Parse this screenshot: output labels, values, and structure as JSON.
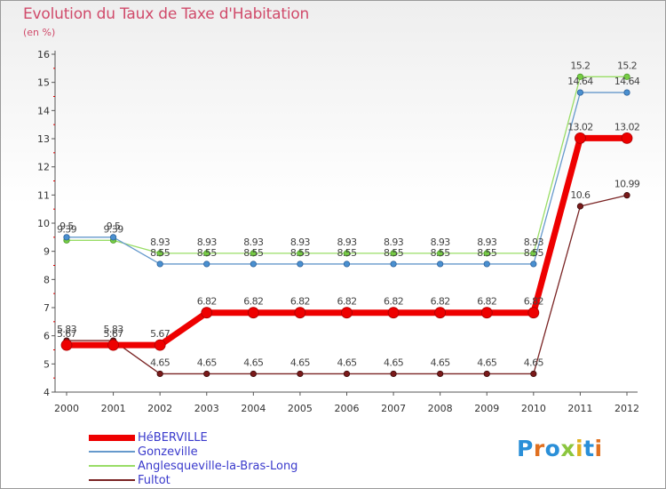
{
  "chart_data": {
    "type": "line",
    "title": "Evolution du Taux de Taxe d'Habitation",
    "ylabel": "(en %)",
    "xlabel": "",
    "ylim": [
      4,
      16
    ],
    "yticks": [
      "4",
      "5",
      "6",
      "7",
      "8",
      "9",
      "10",
      "11",
      "12",
      "13",
      "14",
      "15",
      "16"
    ],
    "categories": [
      "2000",
      "2001",
      "2002",
      "2003",
      "2004",
      "2005",
      "2006",
      "2007",
      "2008",
      "2009",
      "2010",
      "2011",
      "2012"
    ],
    "series": [
      {
        "name": "HéBERVILLE",
        "color": "#ee0000",
        "values": [
          5.67,
          5.67,
          5.67,
          6.82,
          6.82,
          6.82,
          6.82,
          6.82,
          6.82,
          6.82,
          6.82,
          13.02,
          13.02
        ],
        "labels": [
          "5.67",
          "5.67",
          "5.67",
          "6.82",
          "6.82",
          "6.82",
          "6.82",
          "6.82",
          "6.82",
          "6.82",
          "6.82",
          "13.02",
          "13.02"
        ]
      },
      {
        "name": "Gonzeville",
        "color": "#6699cc",
        "values": [
          9.5,
          9.5,
          8.55,
          8.55,
          8.55,
          8.55,
          8.55,
          8.55,
          8.55,
          8.55,
          8.55,
          14.64,
          14.64
        ],
        "labels": [
          "9.5",
          "9.5",
          "8.55",
          "8.55",
          "8.55",
          "8.55",
          "8.55",
          "8.55",
          "8.55",
          "8.55",
          "8.55",
          "14.64",
          "14.64"
        ]
      },
      {
        "name": "Anglesqueville-la-Bras-Long",
        "color": "#99dd66",
        "values": [
          9.39,
          9.39,
          8.93,
          8.93,
          8.93,
          8.93,
          8.93,
          8.93,
          8.93,
          8.93,
          8.93,
          15.2,
          15.2
        ],
        "labels": [
          "9.39",
          "9.39",
          "8.93",
          "8.93",
          "8.93",
          "8.93",
          "8.93",
          "8.93",
          "8.93",
          "8.93",
          "8.93",
          "15.2",
          "15.2"
        ]
      },
      {
        "name": "Fultot",
        "color": "#7a2424",
        "values": [
          5.83,
          5.83,
          4.65,
          4.65,
          4.65,
          4.65,
          4.65,
          4.65,
          4.65,
          4.65,
          4.65,
          10.6,
          10.99
        ],
        "labels": [
          "5.83",
          "5.83",
          "4.65",
          "4.65",
          "4.65",
          "4.65",
          "4.65",
          "4.65",
          "4.65",
          "4.65",
          "4.65",
          "10.6",
          "10.99"
        ]
      }
    ],
    "grid": false,
    "legend": "bottom-left"
  },
  "logo": {
    "text": "Proxiti",
    "letter_colors": [
      "#2a8fd8",
      "#e07020",
      "#2a8fd8",
      "#8cc63f",
      "#e0b020",
      "#2a8fd8",
      "#e07020"
    ]
  }
}
